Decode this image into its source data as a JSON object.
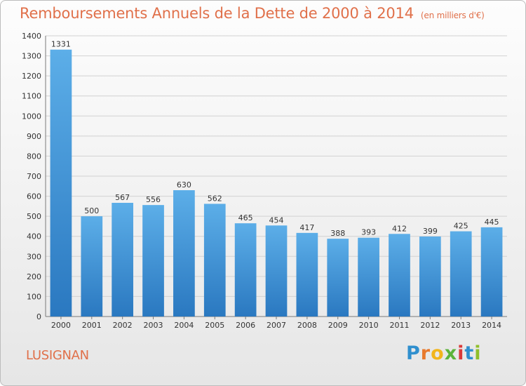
{
  "chart_data": {
    "type": "bar",
    "title": "Remboursements Annuels de la Dette de 2000 à 2014",
    "unit_note": "(en milliers d'€)",
    "categories": [
      "2000",
      "2001",
      "2002",
      "2003",
      "2004",
      "2005",
      "2006",
      "2007",
      "2008",
      "2009",
      "2010",
      "2011",
      "2012",
      "2013",
      "2014"
    ],
    "values": [
      1331,
      500,
      567,
      556,
      630,
      562,
      465,
      454,
      417,
      388,
      393,
      412,
      399,
      425,
      445
    ],
    "ylim": [
      0,
      1400
    ],
    "yticks": [
      0,
      100,
      200,
      300,
      400,
      500,
      600,
      700,
      800,
      900,
      1000,
      1100,
      1200,
      1300,
      1400
    ],
    "grid": true,
    "bar_color": "#3a8fd4"
  },
  "footer": {
    "city": "LUSIGNAN",
    "logo": "Proxiti",
    "logo_colors": [
      "#2f8fce",
      "#e8792c",
      "#f2b51c",
      "#5bb33a",
      "#d93a3a",
      "#2f8fce",
      "#8fbf2a"
    ]
  }
}
